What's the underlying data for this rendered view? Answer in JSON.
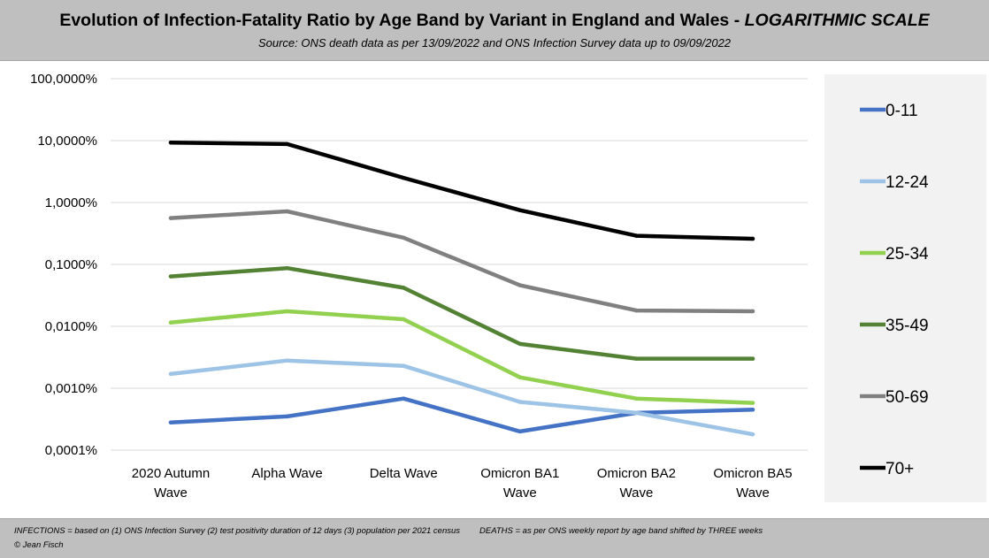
{
  "header": {
    "title_main": "Evolution of Infection-Fatality Ratio by Age Band by Variant in England and Wales - ",
    "title_emph": "LOGARITHMIC SCALE",
    "subtitle": "Source: ONS death data as per 13/09/2022 and ONS Infection Survey data up to 09/09/2022"
  },
  "footer": {
    "infections_note": "INFECTIONS = based on (1) ONS Infection Survey (2) test positivity duration of 12 days (3) population per 2021 census",
    "deaths_note": "DEATHS = as per ONS weekly report by age band shifted by THREE weeks",
    "credit": "© Jean Fisch"
  },
  "chart_data": {
    "type": "line",
    "title": "Evolution of Infection-Fatality Ratio by Age Band by Variant in England and Wales - LOGARITHMIC SCALE",
    "subtitle": "Source: ONS death data as per 13/09/2022 and ONS Infection Survey data up to 09/09/2022",
    "yscale": "log",
    "ylim": [
      0.0001,
      100
    ],
    "yticks": [
      0.0001,
      0.001,
      0.01,
      0.1,
      1,
      10,
      100
    ],
    "ytick_labels": [
      "0,0001%",
      "0,0010%",
      "0,0100%",
      "0,1000%",
      "1,0000%",
      "10,0000%",
      "100,0000%"
    ],
    "grid": true,
    "legend_position": "right",
    "categories": [
      [
        "2020 Autumn",
        "Wave"
      ],
      [
        "Alpha Wave"
      ],
      [
        "Delta Wave"
      ],
      [
        "Omicron BA1",
        "Wave"
      ],
      [
        "Omicron BA2",
        "Wave"
      ],
      [
        "Omicron BA5",
        "Wave"
      ]
    ],
    "series": [
      {
        "name": "0-11",
        "color": "#4472c4",
        "values": [
          0.00028,
          0.00035,
          0.00068,
          0.0002,
          0.0004,
          0.00045
        ]
      },
      {
        "name": "12-24",
        "color": "#9dc3e6",
        "values": [
          0.0017,
          0.0028,
          0.0023,
          0.0006,
          0.0004,
          0.00018
        ]
      },
      {
        "name": "25-34",
        "color": "#92d050",
        "values": [
          0.0115,
          0.0175,
          0.013,
          0.0015,
          0.00068,
          0.00058
        ]
      },
      {
        "name": "35-49",
        "color": "#548235",
        "values": [
          0.064,
          0.087,
          0.042,
          0.0052,
          0.003,
          0.003
        ]
      },
      {
        "name": "50-69",
        "color": "#808080",
        "values": [
          0.56,
          0.72,
          0.27,
          0.046,
          0.018,
          0.0175
        ]
      },
      {
        "name": "70+",
        "color": "#000000",
        "values": [
          9.3,
          8.8,
          2.5,
          0.75,
          0.29,
          0.26
        ]
      }
    ]
  }
}
